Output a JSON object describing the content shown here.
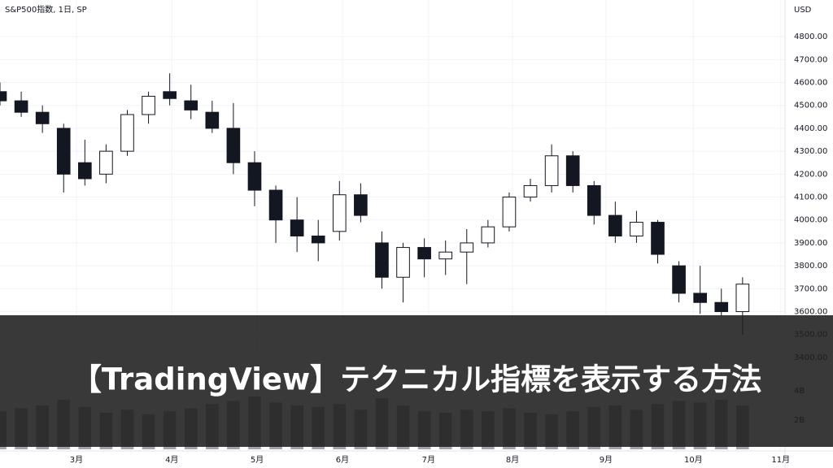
{
  "chart_data": {
    "type": "candlestick",
    "title": "S&P500指数, 1日, SP",
    "currency": "USD",
    "x": [
      0,
      5,
      10,
      15,
      20,
      25,
      30,
      35,
      40,
      45,
      50,
      55,
      60,
      65,
      70,
      75,
      80,
      85,
      90,
      95,
      100,
      105,
      110,
      115,
      120,
      125,
      130,
      135,
      140,
      145,
      150,
      155,
      160,
      165,
      170,
      175
    ],
    "open": [
      4560,
      4520,
      4470,
      4400,
      4250,
      4200,
      4300,
      4460,
      4560,
      4520,
      4470,
      4400,
      4250,
      4130,
      4000,
      3930,
      3950,
      4110,
      3900,
      3750,
      3880,
      3830,
      3860,
      3900,
      3970,
      4100,
      4150,
      4280,
      4150,
      4020,
      3930,
      3990,
      3800,
      3680,
      3640,
      3600
    ],
    "high": [
      4600,
      4560,
      4500,
      4420,
      4350,
      4330,
      4480,
      4560,
      4640,
      4590,
      4520,
      4510,
      4300,
      4150,
      4100,
      4000,
      4170,
      4160,
      3950,
      3900,
      3920,
      3910,
      3960,
      4000,
      4120,
      4180,
      4330,
      4300,
      4170,
      4080,
      4040,
      4000,
      3820,
      3800,
      3700,
      3750
    ],
    "low": [
      4500,
      4450,
      4380,
      4120,
      4150,
      4160,
      4280,
      4420,
      4500,
      4440,
      4380,
      4200,
      4060,
      3900,
      3860,
      3820,
      3910,
      3990,
      3700,
      3640,
      3750,
      3760,
      3720,
      3880,
      3950,
      4080,
      4120,
      4120,
      3980,
      3900,
      3900,
      3810,
      3640,
      3590,
      3580,
      3500
    ],
    "close": [
      4520,
      4470,
      4420,
      4200,
      4180,
      4300,
      4460,
      4540,
      4530,
      4480,
      4400,
      4250,
      4130,
      4000,
      3930,
      3900,
      4110,
      4020,
      3750,
      3880,
      3830,
      3860,
      3900,
      3970,
      4100,
      4150,
      4280,
      4150,
      4020,
      3930,
      3990,
      3850,
      3680,
      3640,
      3600,
      3720
    ],
    "volume": [
      2600000000.0,
      2800000000.0,
      3000000000.0,
      3400000000.0,
      2900000000.0,
      2500000000.0,
      2700000000.0,
      2400000000.0,
      2600000000.0,
      2800000000.0,
      3100000000.0,
      3300000000.0,
      3600000000.0,
      3200000000.0,
      3000000000.0,
      2900000000.0,
      3100000000.0,
      2700000000.0,
      3500000000.0,
      3000000000.0,
      2600000000.0,
      2500000000.0,
      2700000000.0,
      2600000000.0,
      2800000000.0,
      2500000000.0,
      2400000000.0,
      2600000000.0,
      2900000000.0,
      3000000000.0,
      2700000000.0,
      3100000000.0,
      3300000000.0,
      3200000000.0,
      3400000000.0,
      3000000000.0
    ],
    "up_color": "#ffffff",
    "down_color": "#131722",
    "volume_color": "#a0a3ab",
    "grid": true,
    "xlim": [
      0,
      185
    ],
    "ylim": [
      2992,
      4960
    ],
    "volume_ylim": [
      0,
      12000000000.0
    ],
    "xticks": [
      {
        "value": 18,
        "label": "3月"
      },
      {
        "value": 40.5,
        "label": "4月"
      },
      {
        "value": 60.6,
        "label": "5月"
      },
      {
        "value": 80.7,
        "label": "6月"
      },
      {
        "value": 101,
        "label": "7月"
      },
      {
        "value": 120.8,
        "label": "8月"
      },
      {
        "value": 142.8,
        "label": "9月"
      },
      {
        "value": 163.4,
        "label": "10月"
      },
      {
        "value": 184,
        "label": "11月"
      }
    ],
    "yticks": [
      {
        "value": 4800,
        "label": "4800.00"
      },
      {
        "value": 4700,
        "label": "4700.00"
      },
      {
        "value": 4600,
        "label": "4600.00"
      },
      {
        "value": 4500,
        "label": "4500.00"
      },
      {
        "value": 4400,
        "label": "4400.00"
      },
      {
        "value": 4300,
        "label": "4300.00"
      },
      {
        "value": 4200,
        "label": "4200.00"
      },
      {
        "value": 4100,
        "label": "4100.00"
      },
      {
        "value": 4000,
        "label": "4000.00"
      },
      {
        "value": 3900,
        "label": "3900.00"
      },
      {
        "value": 3800,
        "label": "3800.00"
      },
      {
        "value": 3700,
        "label": "3700.00"
      },
      {
        "value": 3600,
        "label": "3600.00"
      },
      {
        "value": 3500,
        "label": "3500.00"
      },
      {
        "value": 3400,
        "label": "3400.00"
      }
    ],
    "volume_ticks": [
      {
        "value": 4000000000.0,
        "label": "4B"
      },
      {
        "value": 2000000000.0,
        "label": "2B"
      }
    ]
  },
  "banner": {
    "title": "【TradingView】テクニカル指標を表示する方法"
  }
}
